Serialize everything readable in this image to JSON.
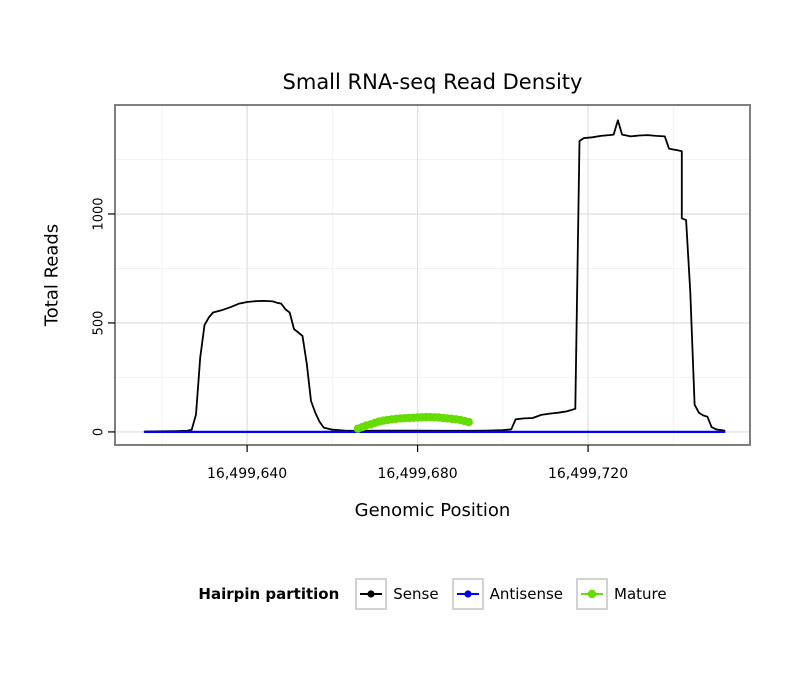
{
  "chart_data": {
    "type": "line",
    "title": "Small RNA-seq Read Density",
    "xlabel": "Genomic Position",
    "ylabel": "Total Reads",
    "legend_title": "Hairpin partition",
    "legend_position": "bottom",
    "grid": true,
    "xlim": [
      16499609,
      16499758
    ],
    "ylim": [
      -60,
      1500
    ],
    "x_ticks": {
      "values": [
        16499640,
        16499680,
        16499720
      ],
      "labels": [
        "16,499,640",
        "16,499,680",
        "16,499,720"
      ],
      "minor": [
        16499620,
        16499660,
        16499700,
        16499740
      ]
    },
    "y_ticks": {
      "values": [
        0,
        500,
        1000
      ],
      "labels": [
        "0",
        "500",
        "1000"
      ],
      "minor": [
        250,
        750,
        1250
      ]
    },
    "colors": {
      "grid_major": "#DEDEDE",
      "grid_minor": "#F2F2F2",
      "panel_border": "#7E7E7E",
      "tick": "#000000",
      "panel_background": "#FFFFFF"
    },
    "series": [
      {
        "name": "Sense",
        "color": "#000000",
        "stroke_width": 1.8,
        "draw_points": false,
        "point_radius": 0,
        "points": [
          [
            16499616,
            2
          ],
          [
            16499620,
            3
          ],
          [
            16499623,
            4
          ],
          [
            16499626,
            5
          ],
          [
            16499627,
            10
          ],
          [
            16499628,
            80
          ],
          [
            16499629,
            340
          ],
          [
            16499630,
            490
          ],
          [
            16499631,
            525
          ],
          [
            16499632,
            548
          ],
          [
            16499634,
            558
          ],
          [
            16499636,
            572
          ],
          [
            16499638,
            588
          ],
          [
            16499640,
            596
          ],
          [
            16499642,
            600
          ],
          [
            16499644,
            601
          ],
          [
            16499646,
            599
          ],
          [
            16499647,
            593
          ],
          [
            16499648,
            589
          ],
          [
            16499649,
            562
          ],
          [
            16499650,
            548
          ],
          [
            16499651,
            472
          ],
          [
            16499652,
            456
          ],
          [
            16499653,
            440
          ],
          [
            16499654,
            312
          ],
          [
            16499655,
            142
          ],
          [
            16499656,
            88
          ],
          [
            16499657,
            46
          ],
          [
            16499658,
            20
          ],
          [
            16499660,
            10
          ],
          [
            16499663,
            6
          ],
          [
            16499668,
            5
          ],
          [
            16499674,
            6
          ],
          [
            16499680,
            6
          ],
          [
            16499686,
            5
          ],
          [
            16499692,
            5
          ],
          [
            16499696,
            6
          ],
          [
            16499700,
            8
          ],
          [
            16499702,
            12
          ],
          [
            16499703,
            58
          ],
          [
            16499705,
            62
          ],
          [
            16499707,
            64
          ],
          [
            16499709,
            78
          ],
          [
            16499711,
            84
          ],
          [
            16499713,
            88
          ],
          [
            16499715,
            94
          ],
          [
            16499716,
            100
          ],
          [
            16499717,
            106
          ],
          [
            16499718,
            1335
          ],
          [
            16499719,
            1348
          ],
          [
            16499721,
            1352
          ],
          [
            16499723,
            1358
          ],
          [
            16499725,
            1362
          ],
          [
            16499726,
            1364
          ],
          [
            16499727,
            1430
          ],
          [
            16499728,
            1364
          ],
          [
            16499730,
            1356
          ],
          [
            16499732,
            1360
          ],
          [
            16499734,
            1362
          ],
          [
            16499736,
            1358
          ],
          [
            16499738,
            1356
          ],
          [
            16499739,
            1300
          ],
          [
            16499740,
            1296
          ],
          [
            16499741,
            1292
          ],
          [
            16499742,
            1288
          ],
          [
            16499742,
            980
          ],
          [
            16499743,
            972
          ],
          [
            16499744,
            640
          ],
          [
            16499745,
            125
          ],
          [
            16499746,
            88
          ],
          [
            16499747,
            76
          ],
          [
            16499748,
            70
          ],
          [
            16499749,
            22
          ],
          [
            16499750,
            12
          ],
          [
            16499752,
            6
          ]
        ]
      },
      {
        "name": "Antisense",
        "color": "#0000FF",
        "stroke_width": 2.2,
        "draw_points": false,
        "point_radius": 0,
        "points": [
          [
            16499616,
            0
          ],
          [
            16499752,
            0
          ]
        ]
      },
      {
        "name": "Mature",
        "color": "#66DD00",
        "stroke_width": 2,
        "draw_points": true,
        "point_radius": 4.2,
        "points": [
          [
            16499666,
            15
          ],
          [
            16499667,
            22
          ],
          [
            16499668,
            30
          ],
          [
            16499669,
            35
          ],
          [
            16499670,
            42
          ],
          [
            16499671,
            48
          ],
          [
            16499672,
            52
          ],
          [
            16499673,
            55
          ],
          [
            16499674,
            58
          ],
          [
            16499675,
            60
          ],
          [
            16499676,
            62
          ],
          [
            16499677,
            63
          ],
          [
            16499678,
            64
          ],
          [
            16499679,
            65
          ],
          [
            16499680,
            66
          ],
          [
            16499681,
            67
          ],
          [
            16499682,
            68
          ],
          [
            16499683,
            68
          ],
          [
            16499684,
            67
          ],
          [
            16499685,
            66
          ],
          [
            16499686,
            64
          ],
          [
            16499687,
            62
          ],
          [
            16499688,
            60
          ],
          [
            16499689,
            58
          ],
          [
            16499690,
            55
          ],
          [
            16499691,
            50
          ],
          [
            16499692,
            45
          ]
        ]
      }
    ]
  }
}
